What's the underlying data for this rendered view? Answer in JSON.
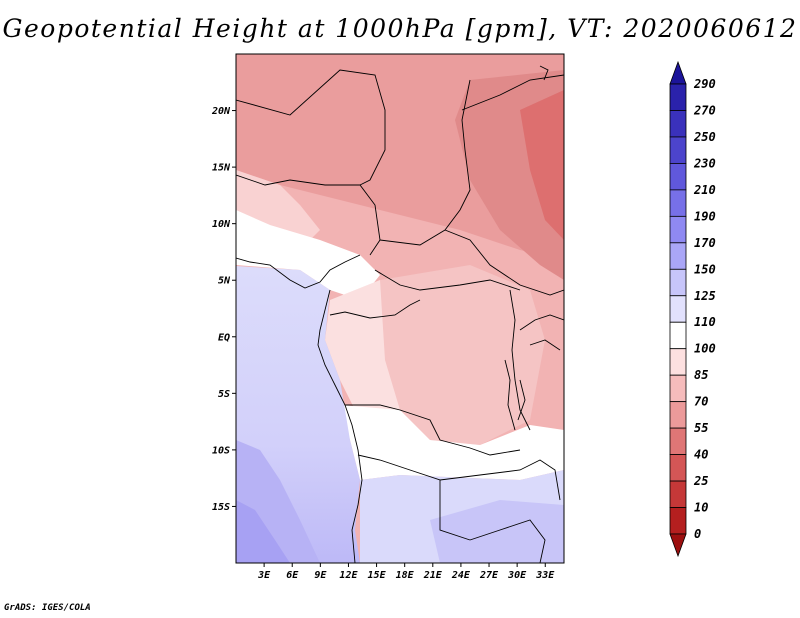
{
  "title": "Geopotential Height at 1000hPa [gpm], VT: 2020060612",
  "credit": "GrADS: IGES/COLA",
  "map": {
    "variable": "Geopotential Height at 1000hPa",
    "units": "gpm",
    "valid_time": "2020060612",
    "lat_range": [
      -20,
      25
    ],
    "lon_range": [
      0,
      35
    ],
    "lat_ticks": [
      "20N",
      "15N",
      "10N",
      "5N",
      "EQ",
      "5S",
      "10S",
      "15S"
    ],
    "lon_ticks": [
      "3E",
      "6E",
      "9E",
      "12E",
      "15E",
      "18E",
      "21E",
      "24E",
      "27E",
      "30E",
      "33E"
    ]
  },
  "colorbar": {
    "labels": [
      "290",
      "270",
      "250",
      "230",
      "210",
      "190",
      "170",
      "150",
      "125",
      "110",
      "100",
      "85",
      "70",
      "55",
      "40",
      "25",
      "10",
      "0"
    ],
    "colors": [
      "#1c149a",
      "#2a22ab",
      "#3a31bc",
      "#4c44cc",
      "#6058dc",
      "#7770e8",
      "#8f89f2",
      "#aaa6f7",
      "#c7c5fa",
      "#e2e1fd",
      "#ffffff",
      "#fde0e0",
      "#f6bcbc",
      "#ec9a9a",
      "#df7676",
      "#d45656",
      "#c53838",
      "#b41f1f",
      "#9c0f0f"
    ]
  }
}
